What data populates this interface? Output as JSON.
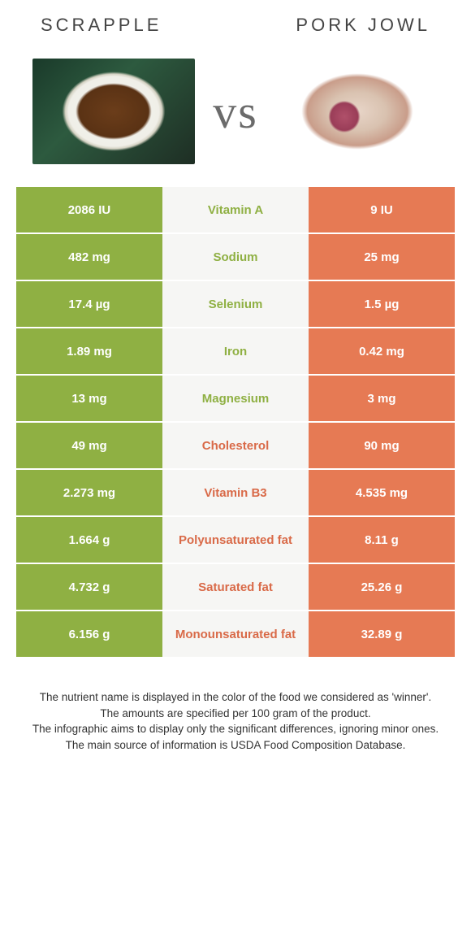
{
  "header": {
    "left_title": "Scrapple",
    "right_title": "Pork jowl",
    "vs_label": "vs"
  },
  "colors": {
    "left": "#8fb043",
    "right": "#e67a54",
    "mid_bg": "#f6f6f4",
    "left_text_in_mid": "#8fb043",
    "right_text_in_mid": "#d96a48"
  },
  "rows": [
    {
      "left": "2086 IU",
      "label": "Vitamin A",
      "right": "9 IU",
      "winner": "left"
    },
    {
      "left": "482 mg",
      "label": "Sodium",
      "right": "25 mg",
      "winner": "left"
    },
    {
      "left": "17.4 µg",
      "label": "Selenium",
      "right": "1.5 µg",
      "winner": "left"
    },
    {
      "left": "1.89 mg",
      "label": "Iron",
      "right": "0.42 mg",
      "winner": "left"
    },
    {
      "left": "13 mg",
      "label": "Magnesium",
      "right": "3 mg",
      "winner": "left"
    },
    {
      "left": "49 mg",
      "label": "Cholesterol",
      "right": "90 mg",
      "winner": "right"
    },
    {
      "left": "2.273 mg",
      "label": "Vitamin B3",
      "right": "4.535 mg",
      "winner": "right"
    },
    {
      "left": "1.664 g",
      "label": "Polyunsaturated fat",
      "right": "8.11 g",
      "winner": "right"
    },
    {
      "left": "4.732 g",
      "label": "Saturated fat",
      "right": "25.26 g",
      "winner": "right"
    },
    {
      "left": "6.156 g",
      "label": "Monounsaturated fat",
      "right": "32.89 g",
      "winner": "right"
    }
  ],
  "footer": {
    "line1": "The nutrient name is displayed in the color of the food we considered as 'winner'.",
    "line2": "The amounts are specified per 100 gram of the product.",
    "line3": "The infographic aims to display only the significant differences, ignoring minor ones.",
    "line4": "The main source of information is USDA Food Composition Database."
  }
}
